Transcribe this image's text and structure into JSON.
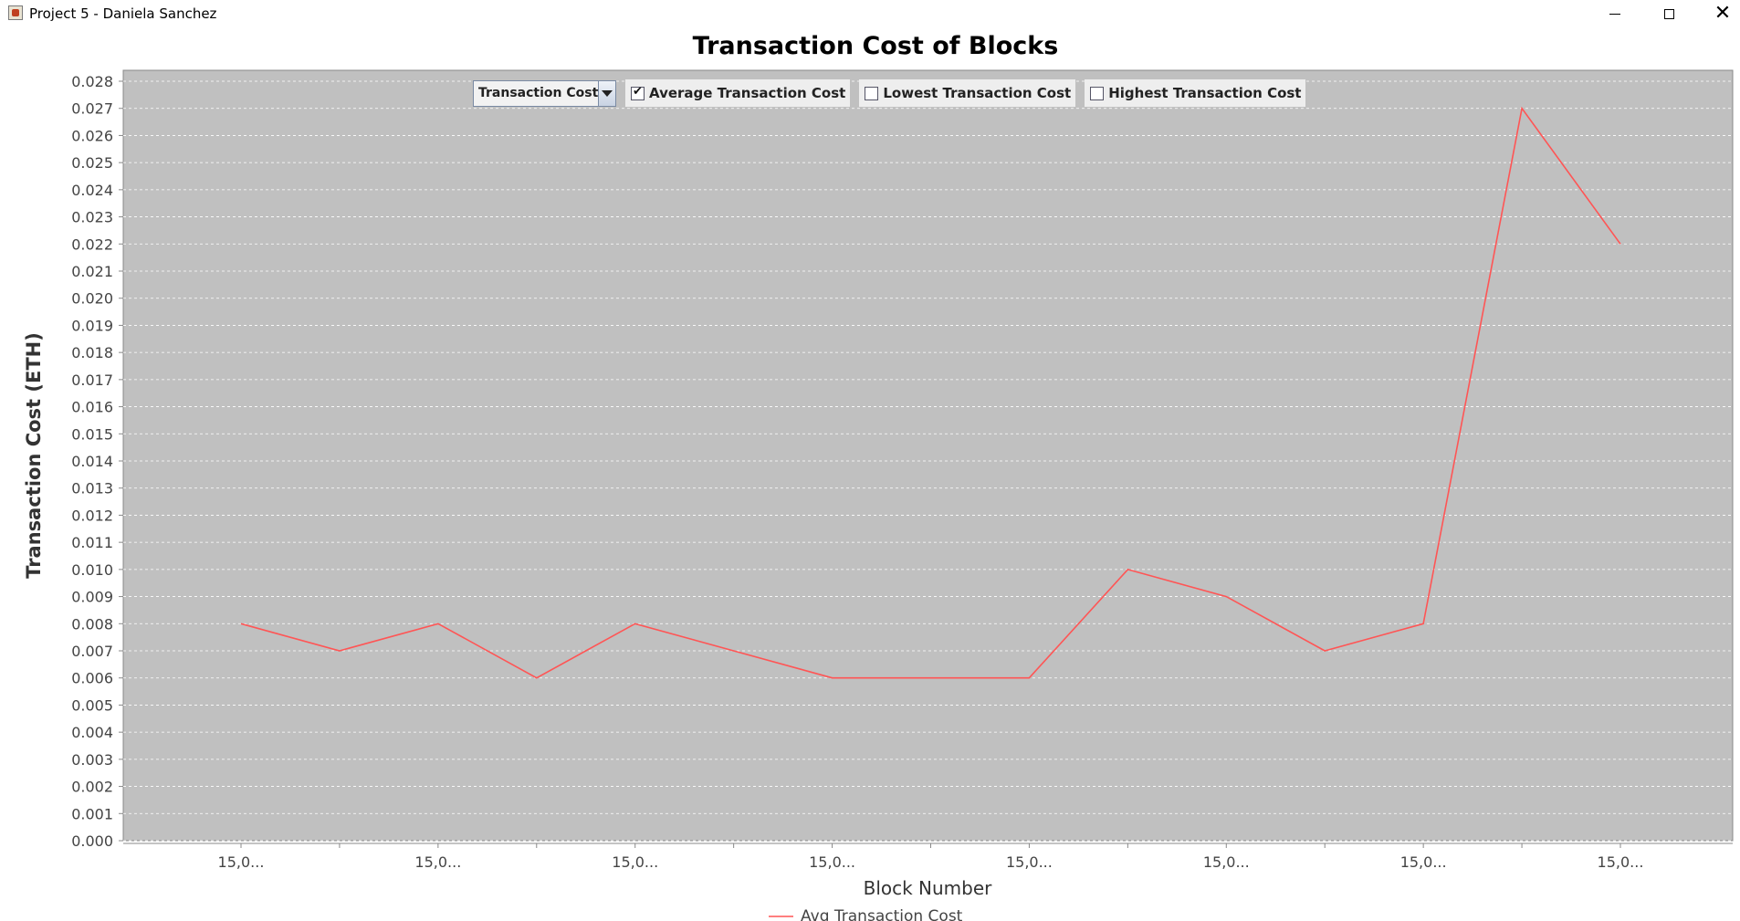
{
  "window": {
    "title": "Project 5 - Daniela Sanchez",
    "minimize_glyph": "",
    "maximize_glyph": "",
    "close_glyph": "✕"
  },
  "controls": {
    "dropdown": {
      "selected": "Transaction Cost"
    },
    "checkboxes": [
      {
        "label": "Average Transaction Cost",
        "checked": true
      },
      {
        "label": "Lowest Transaction Cost",
        "checked": false
      },
      {
        "label": "Highest Transaction Cost",
        "checked": false
      }
    ]
  },
  "colors": {
    "plot_background": "#c0c0c0",
    "gridline": "#ffffff",
    "series_line": "#ff5555",
    "axis_text": "#444444"
  },
  "chart_data": {
    "type": "line",
    "title": "Transaction Cost of Blocks",
    "xlabel": "Block Number",
    "ylabel": "Transaction Cost (ETH)",
    "ylim": [
      0,
      0.028
    ],
    "y_ticks": [
      "0.000",
      "0.001",
      "0.002",
      "0.003",
      "0.004",
      "0.005",
      "0.006",
      "0.007",
      "0.008",
      "0.009",
      "0.010",
      "0.011",
      "0.012",
      "0.013",
      "0.014",
      "0.015",
      "0.016",
      "0.017",
      "0.018",
      "0.019",
      "0.020",
      "0.021",
      "0.022",
      "0.023",
      "0.024",
      "0.025",
      "0.026",
      "0.027",
      "0.028"
    ],
    "categories": [
      "15,0...",
      "",
      "15,0...",
      "",
      "15,0...",
      "",
      "15,0...",
      "",
      "15,0...",
      "",
      "15,0...",
      "",
      "15,0...",
      "",
      "15,0..."
    ],
    "series": [
      {
        "name": "Avg Transaction Cost",
        "values": [
          0.008,
          0.007,
          0.008,
          0.006,
          0.008,
          0.007,
          0.006,
          0.006,
          0.006,
          0.01,
          0.009,
          0.007,
          0.008,
          0.027,
          0.022
        ]
      }
    ],
    "grid": true,
    "legend": "bottom-center"
  }
}
